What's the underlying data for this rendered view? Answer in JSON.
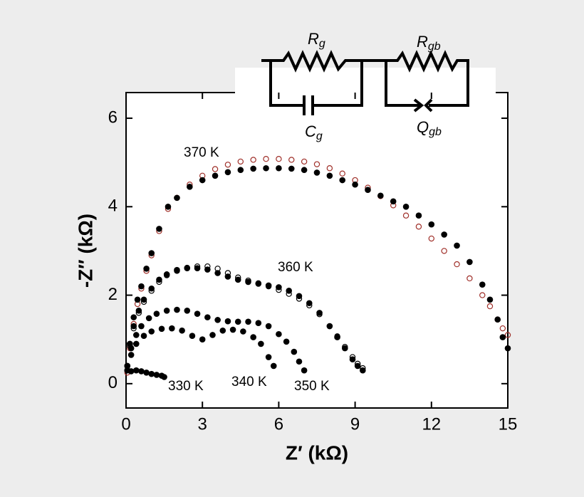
{
  "chart_data": {
    "type": "scatter",
    "xlabel": "Z′ (kΩ)",
    "ylabel": "-Z″ (kΩ)",
    "xlim": [
      0,
      15
    ],
    "ylim": [
      -0.55,
      6.58
    ],
    "xticks": [
      0,
      3,
      6,
      9,
      12,
      15
    ],
    "yticks": [
      0,
      2,
      4,
      6
    ],
    "series": [
      {
        "color": "#a0302a",
        "marker": "open",
        "x": [
          0.05,
          0.15,
          0.3,
          0.45,
          0.6,
          0.8,
          1.0,
          1.3,
          1.65,
          2.0,
          2.5,
          3.0,
          3.5,
          4.0,
          4.5,
          5.0,
          5.5,
          6.0,
          6.5,
          7.0,
          7.5,
          8.0,
          8.5,
          9.0,
          9.5,
          10.0,
          10.5,
          11.0,
          11.5,
          12.0,
          12.5,
          13.0,
          13.5,
          14.0,
          14.3,
          14.6,
          14.8,
          15.0
        ],
        "values": [
          0.25,
          0.8,
          1.35,
          1.8,
          2.15,
          2.55,
          2.9,
          3.45,
          3.95,
          4.2,
          4.5,
          4.7,
          4.85,
          4.95,
          5.02,
          5.06,
          5.08,
          5.08,
          5.06,
          5.02,
          4.96,
          4.87,
          4.75,
          4.6,
          4.43,
          4.24,
          4.03,
          3.8,
          3.55,
          3.28,
          3.0,
          2.7,
          2.38,
          2.0,
          1.75,
          1.45,
          1.25,
          1.1
        ]
      },
      {
        "name": "370 K",
        "color": "#000000",
        "marker": "filled",
        "x": [
          0.05,
          0.15,
          0.3,
          0.45,
          0.6,
          0.8,
          1.0,
          1.3,
          1.65,
          2.0,
          2.5,
          3.0,
          3.5,
          4.0,
          4.5,
          5.0,
          5.5,
          6.0,
          6.5,
          7.0,
          7.5,
          8.0,
          8.5,
          9.0,
          9.5,
          10.0,
          10.5,
          11.0,
          11.5,
          12.0,
          12.5,
          13.0,
          13.5,
          14.0,
          14.3,
          14.6,
          14.8,
          15.0
        ],
        "values": [
          0.3,
          0.9,
          1.5,
          1.9,
          2.2,
          2.6,
          2.95,
          3.5,
          4.0,
          4.2,
          4.45,
          4.6,
          4.7,
          4.78,
          4.83,
          4.86,
          4.87,
          4.87,
          4.86,
          4.83,
          4.77,
          4.7,
          4.6,
          4.5,
          4.38,
          4.25,
          4.12,
          4.0,
          3.8,
          3.6,
          3.37,
          3.12,
          2.75,
          2.24,
          1.9,
          1.45,
          1.05,
          0.8
        ]
      },
      {
        "color": "#000000",
        "marker": "open",
        "x": [
          0.05,
          0.15,
          0.3,
          0.5,
          0.7,
          1.0,
          1.3,
          1.6,
          2.0,
          2.4,
          2.8,
          3.2,
          3.6,
          4.0,
          4.4,
          4.8,
          5.2,
          5.6,
          6.0,
          6.4,
          6.8,
          7.2,
          7.6,
          8.0,
          8.3,
          8.6,
          8.9,
          9.1,
          9.3
        ],
        "values": [
          0.4,
          0.85,
          1.25,
          1.6,
          1.85,
          2.1,
          2.3,
          2.45,
          2.55,
          2.62,
          2.65,
          2.65,
          2.6,
          2.5,
          2.4,
          2.33,
          2.27,
          2.2,
          2.12,
          2.03,
          1.92,
          1.77,
          1.57,
          1.3,
          1.07,
          0.83,
          0.6,
          0.45,
          0.35
        ]
      },
      {
        "name": "360 K",
        "color": "#000000",
        "marker": "filled",
        "x": [
          0.05,
          0.15,
          0.3,
          0.5,
          0.7,
          1.0,
          1.3,
          1.6,
          2.0,
          2.4,
          2.8,
          3.2,
          3.6,
          4.0,
          4.4,
          4.8,
          5.2,
          5.6,
          6.0,
          6.4,
          6.8,
          7.2,
          7.6,
          8.0,
          8.3,
          8.6,
          8.9,
          9.1,
          9.3
        ],
        "values": [
          0.4,
          0.9,
          1.3,
          1.65,
          1.9,
          2.15,
          2.35,
          2.47,
          2.57,
          2.61,
          2.61,
          2.58,
          2.5,
          2.42,
          2.35,
          2.3,
          2.26,
          2.22,
          2.18,
          2.1,
          1.98,
          1.82,
          1.6,
          1.3,
          1.05,
          0.8,
          0.55,
          0.4,
          0.3
        ]
      },
      {
        "name": "350 K",
        "color": "#000000",
        "marker": "filled",
        "x": [
          0.05,
          0.2,
          0.4,
          0.6,
          0.9,
          1.2,
          1.6,
          2.0,
          2.4,
          2.8,
          3.2,
          3.6,
          4.0,
          4.4,
          4.8,
          5.2,
          5.6,
          6.0,
          6.3,
          6.6,
          6.8,
          7.0
        ],
        "values": [
          0.4,
          0.8,
          1.1,
          1.3,
          1.48,
          1.58,
          1.65,
          1.67,
          1.65,
          1.58,
          1.5,
          1.44,
          1.41,
          1.4,
          1.4,
          1.37,
          1.3,
          1.12,
          0.95,
          0.72,
          0.5,
          0.3
        ]
      },
      {
        "name": "340 K",
        "color": "#000000",
        "marker": "filled",
        "x": [
          0.05,
          0.2,
          0.4,
          0.7,
          1.0,
          1.4,
          1.8,
          2.2,
          2.6,
          3.0,
          3.4,
          3.8,
          4.2,
          4.6,
          5.0,
          5.3,
          5.6,
          5.8
        ],
        "values": [
          0.3,
          0.65,
          0.9,
          1.08,
          1.18,
          1.24,
          1.25,
          1.2,
          1.08,
          1.0,
          1.1,
          1.2,
          1.22,
          1.18,
          1.05,
          0.9,
          0.6,
          0.4
        ]
      },
      {
        "name": "330 K",
        "color": "#000000",
        "marker": "filled",
        "x": [
          0.2,
          0.4,
          0.6,
          0.8,
          1.0,
          1.2,
          1.4,
          1.5
        ],
        "values": [
          0.28,
          0.3,
          0.28,
          0.25,
          0.22,
          0.2,
          0.18,
          0.15
        ]
      }
    ],
    "circuit": {
      "rg": {
        "main": "R",
        "sub": "g"
      },
      "cg": {
        "main": "C",
        "sub": "g"
      },
      "rgb": {
        "main": "R",
        "sub": "gb"
      },
      "qgb": {
        "main": "Q",
        "sub": "gb"
      }
    }
  }
}
